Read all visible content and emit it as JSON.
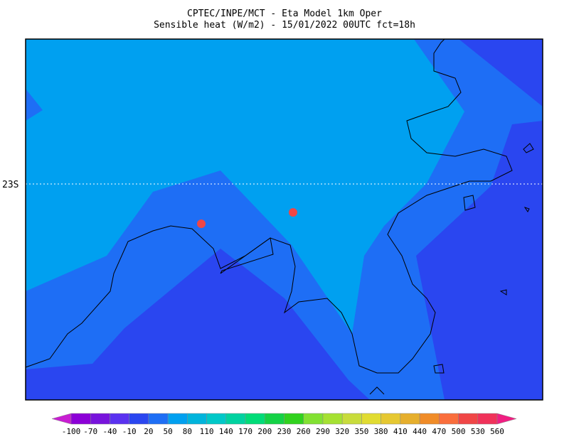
{
  "title": {
    "line1": "CPTEC/INPE/MCT -  Eta Model 1km Oper",
    "line2": "Sensible heat (W/m2) - 15/01/2022 00UTC fct=18h"
  },
  "lat_label": "23S",
  "colorbar": {
    "levels": [
      -100,
      -70,
      -40,
      -10,
      20,
      50,
      80,
      110,
      140,
      170,
      200,
      230,
      260,
      290,
      320,
      350,
      380,
      410,
      440,
      470,
      500,
      530,
      560
    ],
    "colors": [
      "#c81ed2",
      "#8c00d7",
      "#7814dc",
      "#5a32f0",
      "#2a46f0",
      "#1e6ef5",
      "#00a0f0",
      "#00b4dc",
      "#00c8c8",
      "#00d2a0",
      "#00dc78",
      "#14d246",
      "#30d21e",
      "#82e132",
      "#a5e132",
      "#c8dc3c",
      "#e1dc32",
      "#e6c832",
      "#e6af2d",
      "#f08c28",
      "#fa6e3c",
      "#f04646",
      "#f0325a",
      "#f01e82"
    ]
  }
}
